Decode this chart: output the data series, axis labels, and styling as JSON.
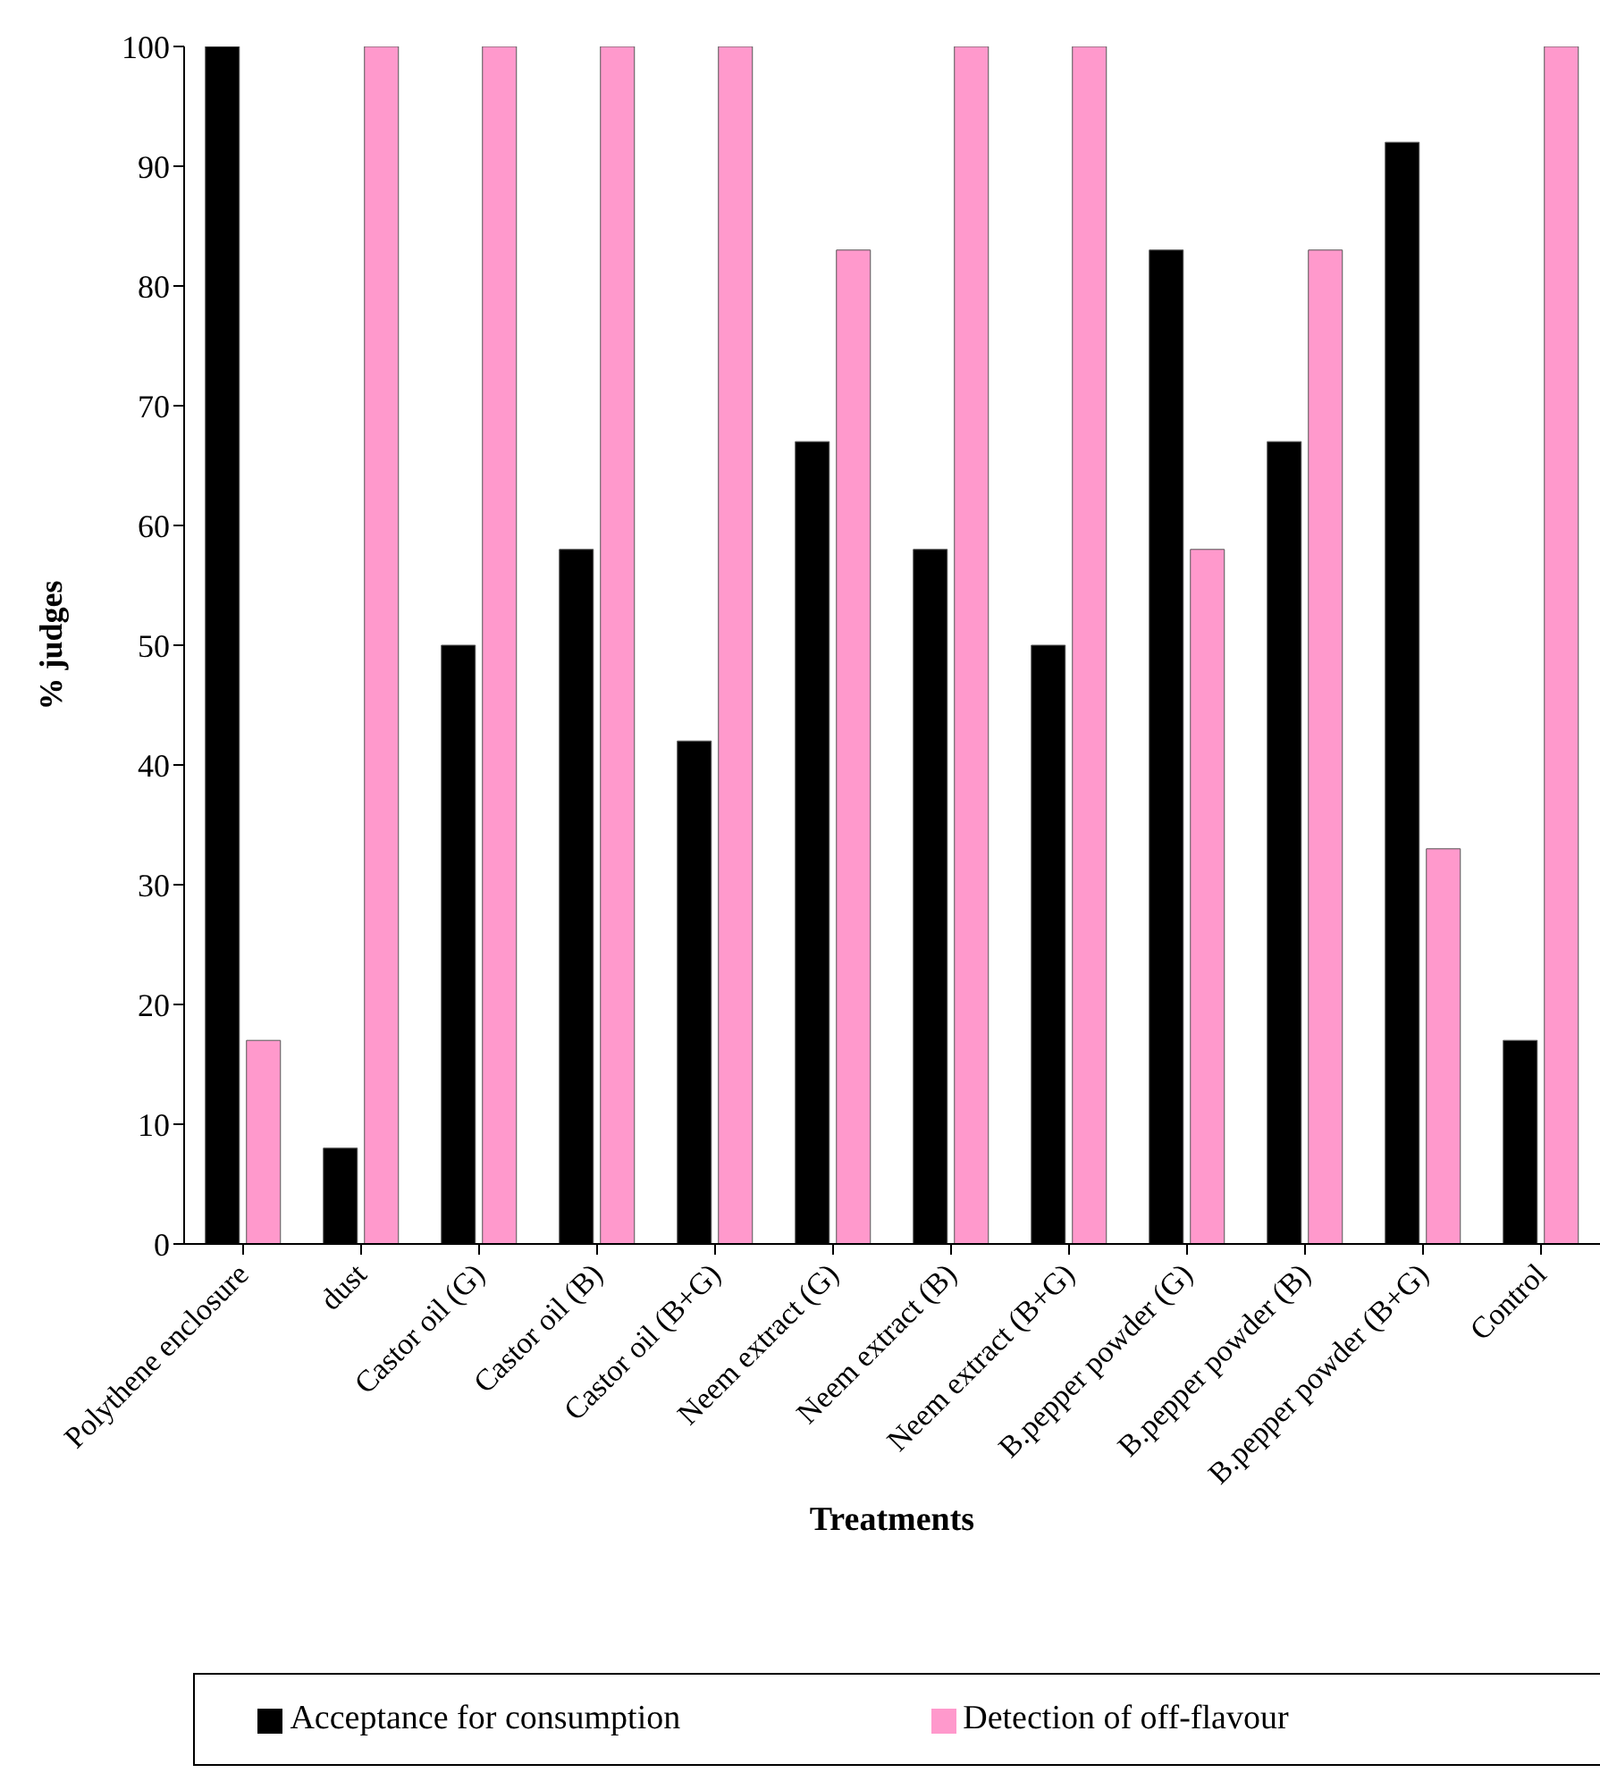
{
  "chart_data": {
    "type": "bar",
    "xlabel": "Treatments",
    "ylabel": "% judges",
    "categories": [
      "Polythene enclosure",
      "dust",
      "Castor oil (G)",
      "Castor oil (B)",
      "Castor oil (B+G)",
      "Neem extract (G)",
      "Neem extract (B)",
      "Neem extract (B+G)",
      "B.pepper powder (G)",
      "B.pepper powder (B)",
      "B.pepper powder (B+G)",
      "Control"
    ],
    "series": [
      {
        "name": "Acceptance for consumption",
        "color": "#000000",
        "values": [
          100,
          8,
          50,
          58,
          42,
          67,
          58,
          50,
          83,
          67,
          92,
          17
        ]
      },
      {
        "name": "Detection of off-flavour",
        "color": "#ff99cc",
        "values": [
          17,
          100,
          100,
          100,
          100,
          83,
          100,
          100,
          58,
          83,
          33,
          100
        ]
      }
    ],
    "ylim": [
      0,
      100
    ],
    "yticks": [
      0,
      10,
      20,
      30,
      40,
      50,
      60,
      70,
      80,
      90,
      100
    ],
    "grid": false,
    "legend": "bottom"
  }
}
